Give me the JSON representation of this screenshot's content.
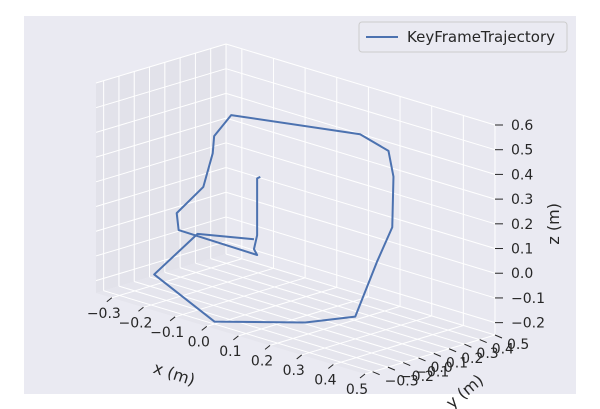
{
  "chart_data": {
    "type": "line3d",
    "title": "",
    "legend": {
      "position": "top-right",
      "entries": [
        "KeyFrameTrajectory"
      ]
    },
    "colors": {
      "series": "#4c72b0",
      "background": "#eaeaf2",
      "pane_left": "#e2e2ea",
      "pane_right": "#e8e8f0",
      "pane_floor": "#e5e5ed",
      "grid": "#ffffff"
    },
    "grid": true,
    "xlabel": "x (m)",
    "ylabel": "y (m)",
    "zlabel": "z (m)",
    "xlim": [
      -0.35,
      0.5
    ],
    "ylim": [
      -0.35,
      0.5
    ],
    "zlim": [
      -0.25,
      0.6
    ],
    "xticks": [
      "−0.3",
      "−0.2",
      "−0.1",
      "0.0",
      "0.1",
      "0.2",
      "0.3",
      "0.4",
      "0.5"
    ],
    "yticks": [
      "−0.3",
      "−0.2",
      "−0.1",
      "0.0",
      "0.1",
      "0.2",
      "0.3",
      "0.4",
      "0.5"
    ],
    "zticks": [
      "−0.2",
      "−0.1",
      "0.0",
      "0.1",
      "0.2",
      "0.3",
      "0.4",
      "0.5",
      "0.6"
    ],
    "series": [
      {
        "name": "KeyFrameTrajectory",
        "points": [
          [
            0.0,
            0.0,
            0.29
          ],
          [
            -0.01,
            0.0,
            0.28
          ],
          [
            -0.01,
            0.0,
            0.05
          ],
          [
            -0.02,
            0.0,
            -0.01
          ],
          [
            -0.01,
            0.0,
            -0.03
          ],
          [
            -0.2,
            -0.12,
            0.02
          ],
          [
            -0.24,
            -0.05,
            0.06
          ],
          [
            -0.18,
            0.0,
            0.18
          ],
          [
            -0.16,
            0.02,
            0.32
          ],
          [
            -0.17,
            0.05,
            0.38
          ],
          [
            -0.15,
            0.12,
            0.46
          ],
          [
            0.18,
            0.28,
            0.48
          ],
          [
            0.26,
            0.3,
            0.44
          ],
          [
            0.3,
            0.25,
            0.36
          ],
          [
            0.33,
            0.18,
            0.18
          ],
          [
            0.32,
            0.1,
            0.05
          ],
          [
            0.3,
            0.0,
            -0.16
          ],
          [
            0.2,
            -0.12,
            -0.2
          ],
          [
            0.0,
            -0.3,
            -0.24
          ],
          [
            -0.2,
            -0.28,
            -0.13
          ],
          [
            -0.15,
            -0.1,
            0.02
          ],
          [
            -0.02,
            0.0,
            0.03
          ]
        ]
      }
    ]
  }
}
